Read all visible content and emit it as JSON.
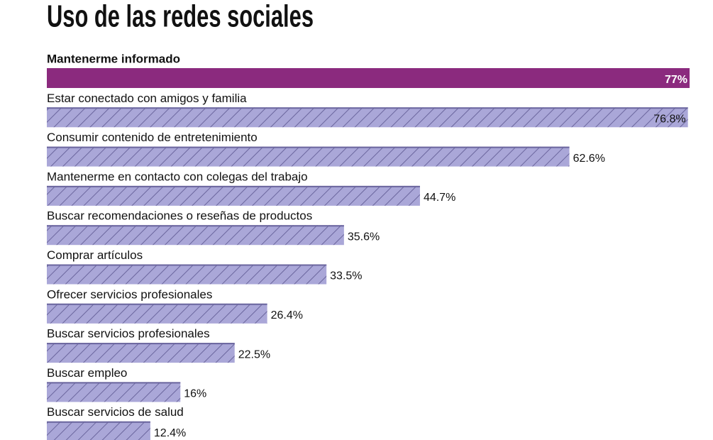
{
  "chart_data": {
    "type": "bar",
    "orientation": "horizontal",
    "title": "Uso de las redes sociales",
    "categories": [
      "Mantenerme informado",
      "Estar conectado con amigos y familia",
      "Consumir contenido de entretenimiento",
      "Mantenerme en contacto con colegas del trabajo",
      "Buscar recomendaciones o reseñas de productos",
      "Comprar artículos",
      "Ofrecer servicios profesionales",
      "Buscar servicios profesionales",
      "Buscar empleo",
      "Buscar servicios de salud"
    ],
    "values": [
      77,
      76.8,
      62.6,
      44.7,
      35.6,
      33.5,
      26.4,
      22.5,
      16,
      12.4
    ],
    "value_labels": [
      "77%",
      "76.8%",
      "62.6%",
      "44.7%",
      "35.6%",
      "33.5%",
      "26.4%",
      "22.5%",
      "16%",
      "12.4%"
    ],
    "colors": [
      "#8b2a7e",
      "#aaa7d8",
      "#aaa7d8",
      "#aaa7d8",
      "#aaa7d8",
      "#aaa7d8",
      "#aaa7d8",
      "#aaa7d8",
      "#aaa7d8",
      "#aaa7d8"
    ],
    "hatched": [
      false,
      true,
      true,
      true,
      true,
      true,
      true,
      true,
      true,
      true
    ]
  }
}
